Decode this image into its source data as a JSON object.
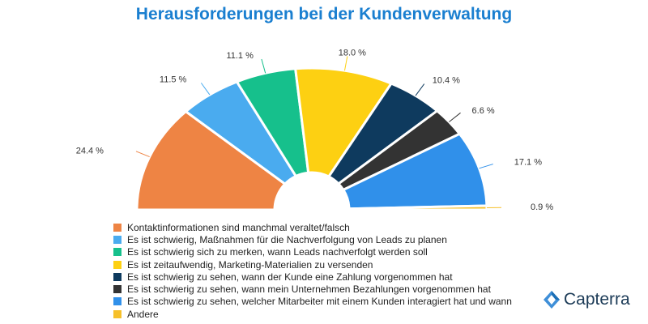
{
  "chart_data": {
    "type": "pie",
    "subtype": "semi-donut",
    "title": "Herausforderungen bei der Kundenverwaltung",
    "series": [
      {
        "label": "Kontaktinformationen sind manchmal veraltet/falsch",
        "value": 24.4,
        "display": "24.4 %",
        "color": "#ee8444"
      },
      {
        "label": "Es ist schwierig, Maßnahmen für die Nachverfolgung von Leads zu planen",
        "value": 11.5,
        "display": "11.5 %",
        "color": "#4aabef"
      },
      {
        "label": "Es ist schwierig sich zu merken, wann Leads nachverfolgt werden soll",
        "value": 11.1,
        "display": "11.1 %",
        "color": "#16c08c"
      },
      {
        "label": "Es ist zeitaufwendig, Marketing-Materialien zu versenden",
        "value": 18.0,
        "display": "18.0 %",
        "color": "#fdd012"
      },
      {
        "label": "Es ist schwierig zu sehen, wann der Kunde eine Zahlung vorgenommen hat",
        "value": 10.4,
        "display": "10.4 %",
        "color": "#0e3a5e"
      },
      {
        "label": "Es ist schwierig zu sehen, wann mein Unternehmen Bezahlungen vorgenommen hat",
        "value": 6.6,
        "display": "6.6 %",
        "color": "#333333"
      },
      {
        "label": "Es ist schwierig zu sehen, welcher Mitarbeiter mit einem Kunden interagiert hat und wann",
        "value": 17.1,
        "display": "17.1 %",
        "color": "#3090ea"
      },
      {
        "label": "Andere",
        "value": 0.9,
        "display": "0.9 %",
        "color": "#f6c02a"
      }
    ],
    "legend": "bottom-left"
  },
  "brand": {
    "name": "Capterra",
    "color": "#1c3b57",
    "logo_icon": "capterra-logo-icon"
  }
}
